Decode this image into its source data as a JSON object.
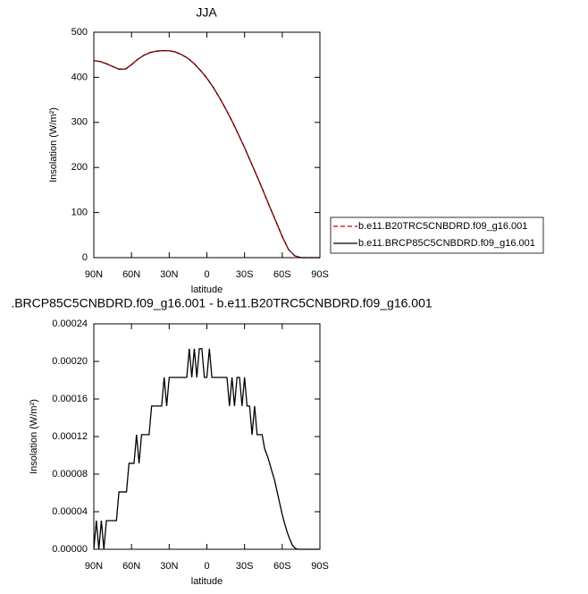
{
  "chart_data": [
    {
      "type": "line",
      "title": "JJA",
      "x_label": "latitude",
      "y_label": "Insolation (W/m²)",
      "x": [
        90,
        85,
        80,
        75,
        70,
        65,
        60,
        55,
        50,
        45,
        40,
        35,
        30,
        25,
        20,
        15,
        10,
        5,
        0,
        -5,
        -10,
        -15,
        -20,
        -25,
        -30,
        -35,
        -40,
        -45,
        -50,
        -55,
        -60,
        -65,
        -70,
        -75,
        -80,
        -85,
        -90
      ],
      "series": [
        {
          "name": "b.e11.B20TRC5CNBDRD.f09_g16.001",
          "color": "#c00000",
          "dash": "dashed",
          "values": [
            437,
            435,
            430,
            424,
            418,
            418,
            428,
            440,
            449,
            455,
            458,
            459,
            459,
            456,
            450,
            442,
            430,
            415,
            398,
            378,
            355,
            330,
            303,
            274,
            244,
            212,
            180,
            147,
            113,
            80,
            47,
            18,
            4,
            0,
            0,
            0,
            0
          ]
        },
        {
          "name": "b.e11.BRCP85C5CNBDRD.f09_g16.001",
          "color": "#000000",
          "dash": "solid",
          "values": [
            437,
            435,
            430,
            424,
            418,
            418,
            428,
            440,
            449,
            455,
            458,
            459,
            459,
            456,
            450,
            442,
            430,
            415,
            398,
            378,
            355,
            330,
            303,
            274,
            244,
            212,
            180,
            147,
            113,
            80,
            47,
            18,
            4,
            0,
            0,
            0,
            0
          ]
        }
      ],
      "xlim": [
        90,
        -90
      ],
      "xticks": [
        {
          "value": 90,
          "label": "90N"
        },
        {
          "value": 60,
          "label": "60N"
        },
        {
          "value": 30,
          "label": "30N"
        },
        0,
        {
          "value": -30,
          "label": "30S"
        },
        {
          "value": -60,
          "label": "60S"
        },
        {
          "value": -90,
          "label": "90S"
        }
      ],
      "ylim": [
        0,
        500
      ],
      "yticks": [
        0,
        100,
        200,
        300,
        400,
        500
      ],
      "legend": "right"
    },
    {
      "type": "line",
      "title": ".BRCP85C5CNBDRD.f09_g16.001 - b.e11.B20TRC5CNBDRD.f09_g16.001",
      "x_label": "latitude",
      "y_label": "Insolation (W/m²)",
      "x": [
        90,
        88,
        86,
        84,
        82,
        80,
        78,
        76,
        74,
        72,
        70,
        68,
        66,
        64,
        62,
        60,
        58,
        56,
        54,
        52,
        50,
        48,
        46,
        44,
        42,
        40,
        38,
        36,
        34,
        32,
        30,
        28,
        26,
        24,
        22,
        20,
        18,
        16,
        14,
        12,
        10,
        8,
        6,
        4,
        2,
        0,
        -2,
        -4,
        -6,
        -8,
        -10,
        -12,
        -14,
        -16,
        -18,
        -20,
        -22,
        -24,
        -26,
        -28,
        -30,
        -32,
        -34,
        -36,
        -38,
        -40,
        -42,
        -44,
        -46,
        -48,
        -50,
        -52,
        -54,
        -56,
        -58,
        -60,
        -62,
        -64,
        -66,
        -68,
        -70,
        -72,
        -74,
        -76,
        -78,
        -80,
        -82,
        -84,
        -86,
        -88,
        -90
      ],
      "series": [
        {
          "name": null,
          "color": "#000000",
          "dash": "solid",
          "values": [
            0,
            3.05e-05,
            0,
            3.05e-05,
            0,
            3.05e-05,
            3.05e-05,
            3.05e-05,
            3.05e-05,
            3.05e-05,
            6.1e-05,
            6.1e-05,
            6.1e-05,
            6.1e-05,
            9.15e-05,
            9.15e-05,
            9.15e-05,
            0.000122,
            9.15e-05,
            0.000122,
            0.000122,
            0.000122,
            0.000122,
            0.0001525,
            0.0001525,
            0.0001525,
            0.0001525,
            0.0001525,
            0.000183,
            0.0001525,
            0.000183,
            0.000183,
            0.000183,
            0.000183,
            0.000183,
            0.000183,
            0.000183,
            0.000183,
            0.0002135,
            0.000183,
            0.0002135,
            0.000183,
            0.0002135,
            0.0002135,
            0.000183,
            0.000183,
            0.0002135,
            0.000183,
            0.000183,
            0.000183,
            0.000183,
            0.000183,
            0.000183,
            0.000183,
            0.0001525,
            0.000183,
            0.0001525,
            0.000183,
            0.000183,
            0.0001525,
            0.000183,
            0.0001525,
            0.0001525,
            0.000122,
            0.0001525,
            0.000122,
            0.000122,
            0.000122,
            0.000107,
            0.0001,
            9.15e-05,
            8.2e-05,
            7.3e-05,
            6.1e-05,
            4.9e-05,
            3.7e-05,
            2.7e-05,
            1.8e-05,
            1.07e-05,
            4.6e-06,
            1.5e-06,
            0,
            0,
            0,
            0,
            0,
            0,
            0,
            0,
            0,
            0
          ]
        }
      ],
      "xlim": [
        90,
        -90
      ],
      "xticks": [
        {
          "value": 90,
          "label": "90N"
        },
        {
          "value": 60,
          "label": "60N"
        },
        {
          "value": 30,
          "label": "30N"
        },
        0,
        {
          "value": -30,
          "label": "30S"
        },
        {
          "value": -60,
          "label": "60S"
        },
        {
          "value": -90,
          "label": "90S"
        }
      ],
      "ylim": [
        0,
        0.00024
      ],
      "yticks": [
        {
          "value": 0,
          "label": "0.00000"
        },
        {
          "value": 4e-05,
          "label": "0.00004"
        },
        {
          "value": 8e-05,
          "label": "0.00008"
        },
        {
          "value": 0.00012,
          "label": "0.00012"
        },
        {
          "value": 0.00016,
          "label": "0.00016"
        },
        {
          "value": 0.0002,
          "label": "0.00020"
        },
        {
          "value": 0.00024,
          "label": "0.00024"
        }
      ]
    }
  ]
}
